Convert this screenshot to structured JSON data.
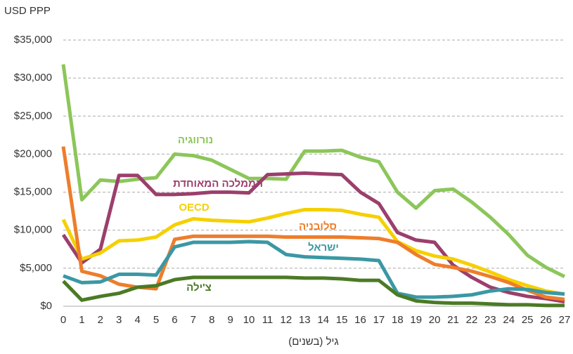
{
  "chart_data": {
    "type": "line",
    "y_unit_label": "USD PPP",
    "x_label": "גיל (בשנים)",
    "x": [
      0,
      1,
      2,
      3,
      4,
      5,
      6,
      7,
      8,
      9,
      10,
      11,
      12,
      13,
      14,
      15,
      16,
      17,
      18,
      19,
      20,
      21,
      22,
      23,
      24,
      25,
      26,
      27
    ],
    "xlim": [
      0,
      27
    ],
    "ylim": [
      0,
      35000
    ],
    "yticks": [
      {
        "value": 0,
        "label": "$0"
      },
      {
        "value": 5000,
        "label": "$5,000"
      },
      {
        "value": 10000,
        "label": "$10,000"
      },
      {
        "value": 15000,
        "label": "$15,000"
      },
      {
        "value": 20000,
        "label": "$20,000"
      },
      {
        "value": 25000,
        "label": "$25,000"
      },
      {
        "value": 30000,
        "label": "$30,000"
      },
      {
        "value": 35000,
        "label": "$35,000"
      }
    ],
    "grid": true,
    "series": [
      {
        "name": "נורווגיה",
        "color": "#8cc65a",
        "values": [
          31800,
          14000,
          16600,
          16400,
          16700,
          16900,
          20000,
          19800,
          19200,
          18000,
          16800,
          16800,
          16700,
          20400,
          20400,
          20500,
          19600,
          19000,
          15000,
          12900,
          15200,
          15400,
          13700,
          11700,
          9400,
          6700,
          5100,
          3900
        ]
      },
      {
        "name": "הממלכה המאוחדת",
        "color": "#9b3f6c",
        "values": [
          9400,
          5700,
          7500,
          17200,
          17200,
          14700,
          14700,
          14800,
          15000,
          15000,
          14900,
          17300,
          17400,
          17500,
          17400,
          17300,
          15000,
          13500,
          9700,
          8700,
          8400,
          5400,
          3800,
          2500,
          1800,
          1300,
          1000,
          600
        ]
      },
      {
        "name": "OECD",
        "color": "#f5d000",
        "values": [
          11400,
          6200,
          7000,
          8600,
          8700,
          9100,
          10700,
          11500,
          11300,
          11200,
          11100,
          11600,
          12200,
          12700,
          12700,
          12600,
          12100,
          11700,
          8500,
          7300,
          6600,
          6200,
          5400,
          4500,
          3500,
          2700,
          2000,
          1600
        ]
      },
      {
        "name": "סלובניה",
        "color": "#ee7d2b",
        "values": [
          21000,
          4600,
          4000,
          2900,
          2500,
          2300,
          8800,
          9200,
          9200,
          9200,
          9200,
          9200,
          9100,
          9100,
          9100,
          9100,
          9000,
          8900,
          8400,
          6800,
          5500,
          5100,
          4600,
          3900,
          3100,
          2100,
          1200,
          900
        ]
      },
      {
        "name": "ישראל",
        "color": "#3a98a4",
        "values": [
          4000,
          3100,
          3200,
          4200,
          4200,
          4100,
          7800,
          8400,
          8400,
          8400,
          8500,
          8400,
          6800,
          6500,
          6400,
          6300,
          6200,
          6000,
          1700,
          1200,
          1200,
          1300,
          1500,
          2000,
          2300,
          2200,
          1800,
          1600
        ]
      },
      {
        "name": "צ'ילה",
        "color": "#4b7a25",
        "values": [
          3300,
          800,
          1300,
          1700,
          2500,
          2700,
          3500,
          3800,
          3800,
          3800,
          3800,
          3800,
          3800,
          3700,
          3700,
          3600,
          3400,
          3400,
          1500,
          700,
          500,
          400,
          400,
          300,
          200,
          200,
          100,
          100
        ]
      }
    ]
  }
}
